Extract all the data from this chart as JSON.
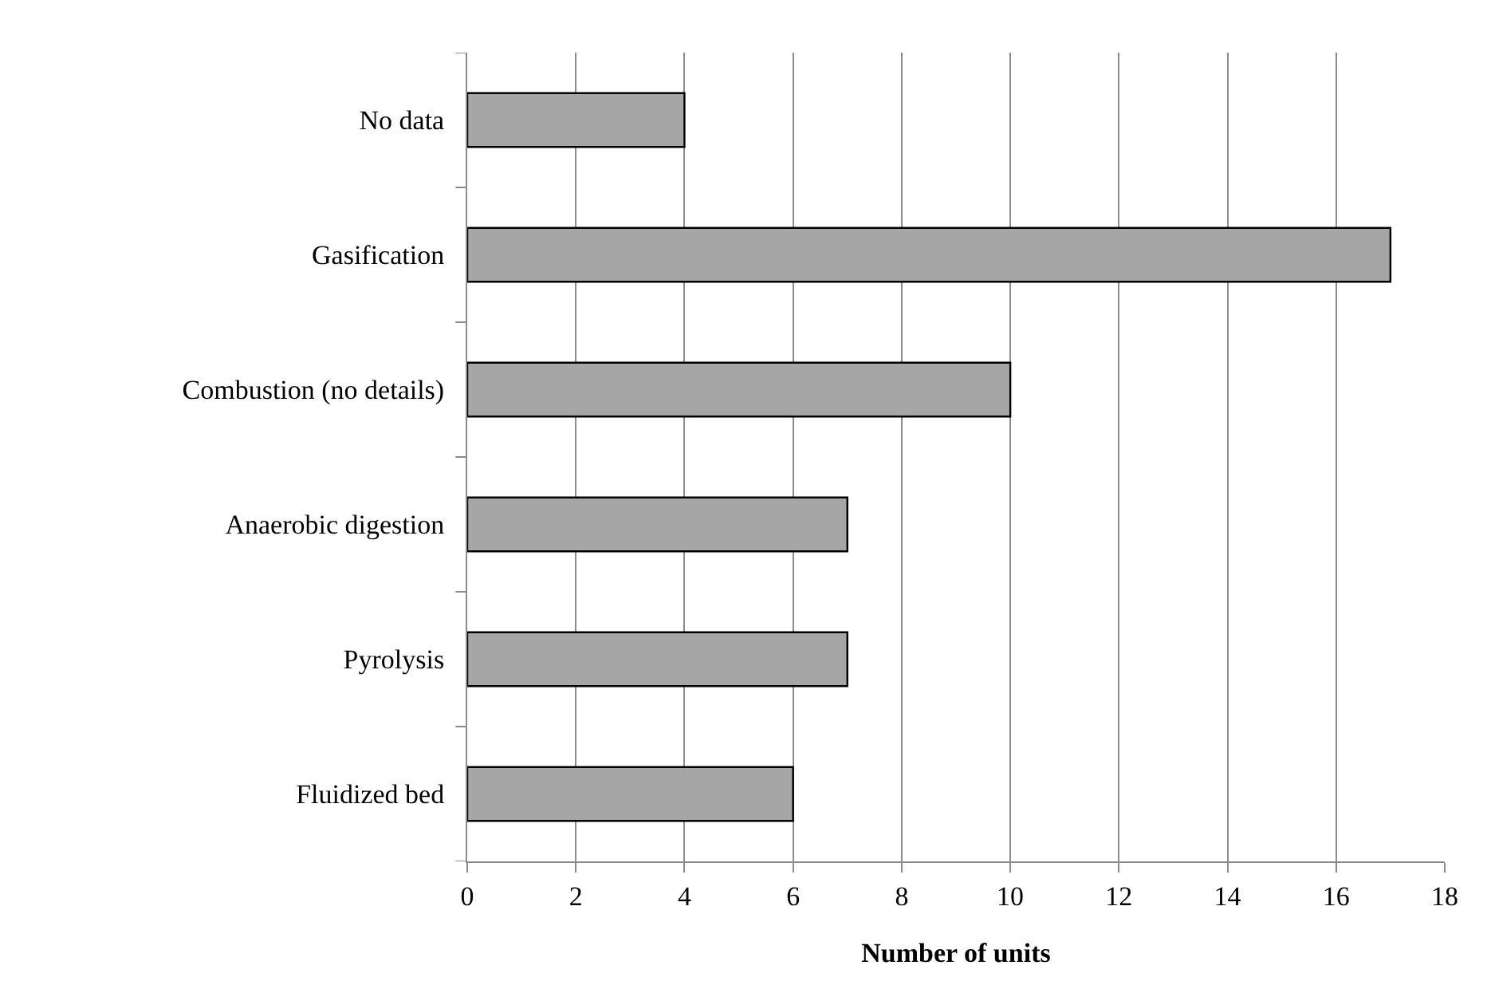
{
  "chart_data": {
    "type": "bar",
    "orientation": "horizontal",
    "categories": [
      "No data",
      "Gasification",
      "Combustion (no details)",
      "Anaerobic digestion",
      "Pyrolysis",
      "Fluidized bed"
    ],
    "values": [
      4,
      17,
      10,
      7,
      7,
      6
    ],
    "color": "#a6a6a6",
    "xlabel": "Number of units",
    "xlim": [
      0,
      18
    ],
    "xticks": [
      0,
      2,
      4,
      6,
      8,
      10,
      12,
      14,
      16,
      18
    ],
    "grid": "x",
    "legend": false
  }
}
